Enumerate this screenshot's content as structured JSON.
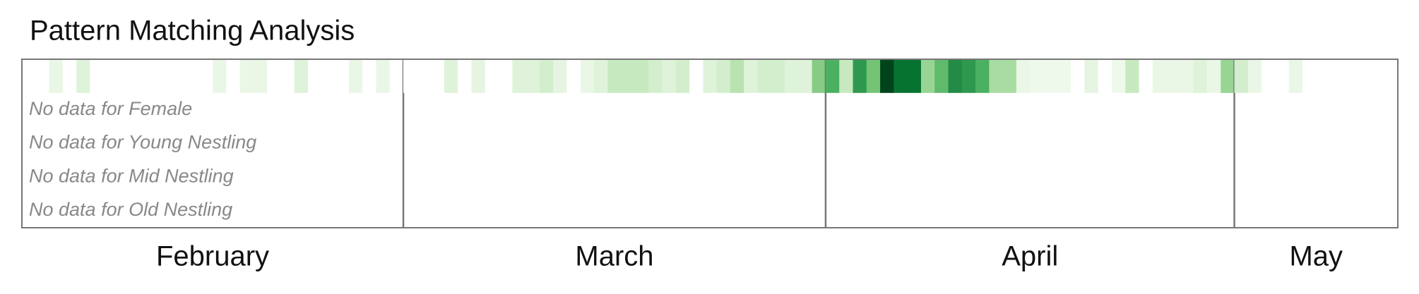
{
  "chart_data": {
    "type": "heatmap",
    "title": "Pattern Matching Analysis",
    "empty_rows": [
      "No data for Female",
      "No data for Young Nestling",
      "No data for Mid Nestling",
      "No data for Old Nestling"
    ],
    "clim": [
      0,
      10
    ],
    "colors": [
      "#ffffff",
      "#e5f5e0",
      "#c7e9c0",
      "#a1d99b",
      "#74c476",
      "#41ab5d",
      "#238b45",
      "#006d2c",
      "#00441b"
    ],
    "frame_color": "#777777",
    "months": [
      {
        "label": "February",
        "values": [
          0,
          0,
          1,
          0,
          1.5,
          0,
          0,
          0,
          0,
          0,
          0,
          0,
          0,
          0,
          1,
          0,
          1,
          1,
          0,
          0,
          1.5,
          0,
          0,
          0,
          1,
          0,
          1,
          0
        ]
      },
      {
        "label": "March",
        "values": [
          0,
          0,
          0,
          1.5,
          0,
          1.2,
          0,
          0,
          1.5,
          1.5,
          2,
          1.2,
          0,
          1,
          1.5,
          2.5,
          2.5,
          2.5,
          2,
          1.5,
          2,
          0,
          1.5,
          2,
          3,
          1.5,
          2,
          2,
          1.5,
          1.5,
          4.5
        ]
      },
      {
        "label": "April",
        "values": [
          6,
          2.5,
          7,
          5,
          10,
          8.5,
          8.5,
          4,
          5.5,
          7.5,
          7,
          6,
          3.5,
          3.5,
          1,
          0.8,
          0.8,
          0.8,
          0,
          1.2,
          0,
          0.8,
          2.5,
          0,
          1,
          1,
          1,
          1.5,
          1,
          4
        ]
      },
      {
        "label": "May",
        "values": [
          2,
          1,
          0,
          0,
          1,
          0,
          0,
          0,
          0,
          0,
          0,
          0
        ]
      }
    ]
  }
}
